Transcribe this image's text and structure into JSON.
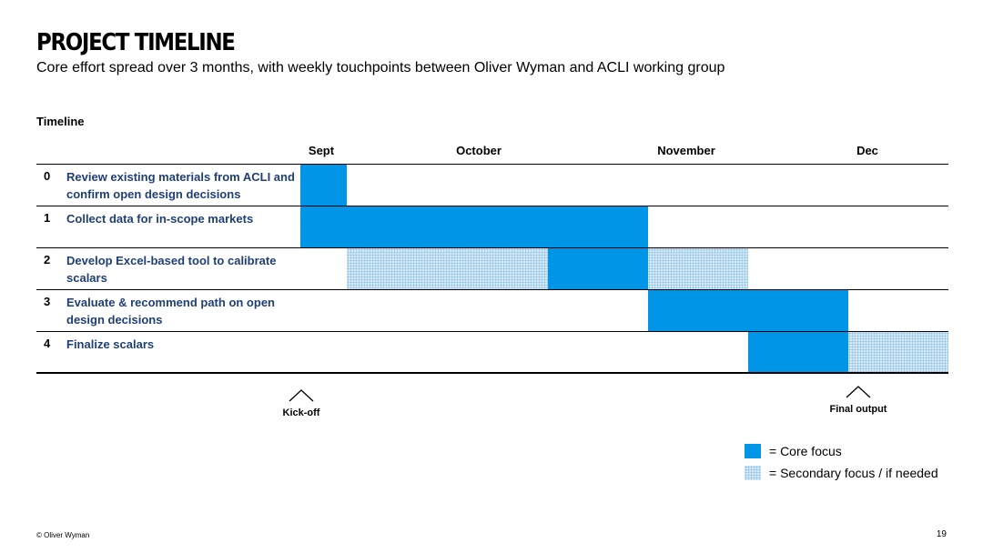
{
  "title": "PROJECT TIMELINE",
  "subtitle": "Core effort spread over 3 months, with weekly touchpoints between Oliver Wyman and ACLI working group",
  "section_label": "Timeline",
  "months": [
    "Sept",
    "October",
    "November",
    "Dec"
  ],
  "rows": [
    {
      "num": "0",
      "label": "Review existing materials from ACLI and confirm open design decisions"
    },
    {
      "num": "1",
      "label": "Collect data for in-scope markets"
    },
    {
      "num": "2",
      "label": "Develop Excel-based tool to calibrate scalars"
    },
    {
      "num": "3",
      "label": "Evaluate & recommend path on open design decisions"
    },
    {
      "num": "4",
      "label": "Finalize scalars"
    }
  ],
  "milestones": {
    "kickoff": "Kick-off",
    "final": "Final output"
  },
  "legend": {
    "core": "= Core focus",
    "secondary": "= Secondary focus / if needed"
  },
  "colors": {
    "core": "#0095e6",
    "secondary": "#cfe6f5",
    "task_text": "#1f3f78"
  },
  "footer": {
    "copyright": "© Oliver Wyman",
    "page": "19"
  }
}
